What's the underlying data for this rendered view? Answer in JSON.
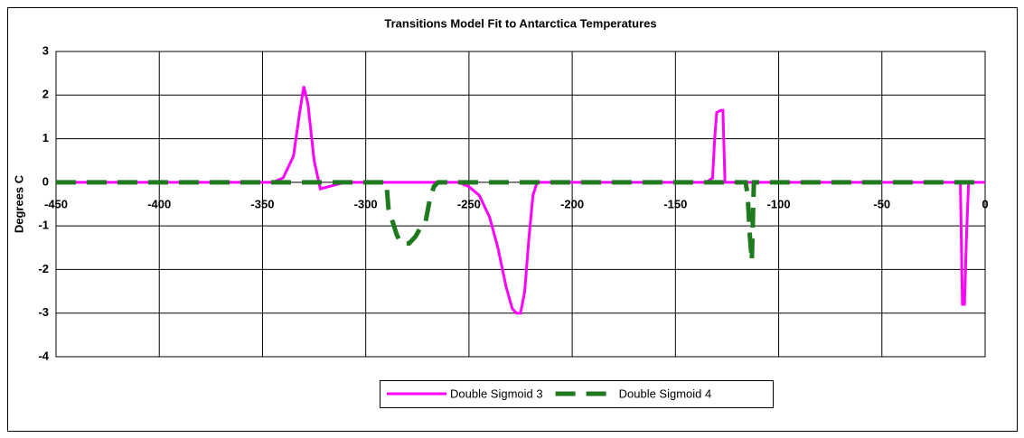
{
  "chart_data": {
    "type": "line",
    "title": "Transitions Model Fit to Antarctica Temperatures",
    "y_label": "Degrees C",
    "xlim": [
      -450,
      0
    ],
    "xticks": [
      -450,
      -400,
      -350,
      -300,
      -250,
      -200,
      -150,
      -100,
      -50,
      0
    ],
    "ylim": [
      -4,
      3
    ],
    "yticks": [
      -4,
      -3,
      -2,
      -1,
      0,
      1,
      2,
      3
    ],
    "grid": true,
    "legend": "bottom",
    "series": [
      {
        "name": "Double Sigmoid 3",
        "color": "#ff00ff",
        "dashed": false,
        "x": [
          -450,
          -345,
          -340,
          -335,
          -332,
          -330,
          -328,
          -325,
          -322,
          -318,
          -310,
          -255,
          -250,
          -245,
          -240,
          -236,
          -232,
          -229,
          -227,
          -225,
          -223,
          -221,
          -219,
          -217,
          -135,
          -132,
          -131,
          -130,
          -128,
          -127,
          -126,
          -12,
          -11,
          -10,
          -9,
          -8,
          0
        ],
        "values": [
          0,
          0,
          0.1,
          0.6,
          1.6,
          2.2,
          1.8,
          0.5,
          -0.15,
          -0.1,
          0,
          0,
          -0.1,
          -0.3,
          -0.8,
          -1.5,
          -2.4,
          -2.9,
          -3.0,
          -3.0,
          -2.5,
          -1.3,
          -0.3,
          0,
          0,
          0.1,
          1.0,
          1.6,
          1.65,
          1.65,
          0,
          0,
          -2.8,
          -2.8,
          -1.2,
          0,
          0
        ]
      },
      {
        "name": "Double Sigmoid 4",
        "color": "#1f7a1f",
        "dashed": true,
        "x": [
          -450,
          -290,
          -289,
          -287,
          -285,
          -283,
          -279,
          -276,
          -273,
          -271,
          -269,
          -267,
          -265,
          -116,
          -115,
          -114,
          -113,
          -112,
          0
        ],
        "values": [
          0,
          0,
          -0.6,
          -0.9,
          -1.2,
          -1.4,
          -1.4,
          -1.25,
          -1.0,
          -0.9,
          -0.4,
          -0.1,
          0,
          0,
          -0.3,
          -1.2,
          -1.8,
          0,
          0
        ]
      }
    ]
  }
}
